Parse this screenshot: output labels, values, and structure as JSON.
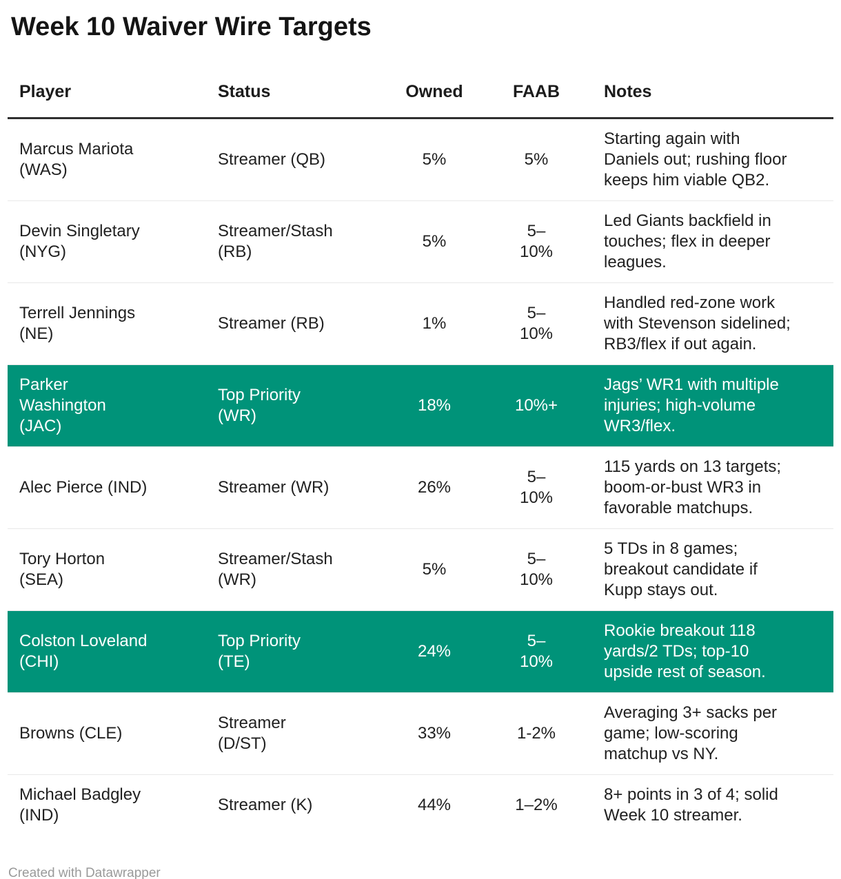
{
  "chart_data": {
    "type": "table",
    "title": "Week 10 Waiver Wire Targets",
    "columns": [
      "Player",
      "Status",
      "Owned",
      "FAAB",
      "Notes"
    ],
    "rows": [
      {
        "player": "Marcus Mariota (WAS)",
        "status": "Streamer (QB)",
        "owned": "5%",
        "faab": "5%",
        "notes": "Starting again with Daniels out; rushing floor keeps him viable QB2.",
        "highlight": false
      },
      {
        "player": "Devin Singletary (NYG)",
        "status": "Streamer/Stash (RB)",
        "owned": "5%",
        "faab": "5–10%",
        "notes": "Led Giants backfield in touches; flex in deeper leagues.",
        "highlight": false
      },
      {
        "player": "Terrell Jennings (NE)",
        "status": "Streamer (RB)",
        "owned": "1%",
        "faab": "5–10%",
        "notes": "Handled red-zone work with Stevenson sidelined; RB3/flex if out again.",
        "highlight": false
      },
      {
        "player": "Parker Washington (JAC)",
        "status": "Top Priority (WR)",
        "owned": "18%",
        "faab": "10%+",
        "notes": "Jags’ WR1 with multiple injuries; high-volume WR3/flex.",
        "highlight": true
      },
      {
        "player": "Alec Pierce (IND)",
        "status": "Streamer (WR)",
        "owned": "26%",
        "faab": "5–10%",
        "notes": "115 yards on 13 targets; boom-or-bust WR3 in favorable matchups.",
        "highlight": false
      },
      {
        "player": "Tory Horton (SEA)",
        "status": "Streamer/Stash (WR)",
        "owned": "5%",
        "faab": "5–10%",
        "notes": "5 TDs in 8 games; breakout candidate if Kupp stays out.",
        "highlight": false
      },
      {
        "player": "Colston Loveland (CHI)",
        "status": "Top Priority (TE)",
        "owned": "24%",
        "faab": "5–10%",
        "notes": "Rookie breakout 118 yards/2 TDs; top-10 upside rest of season.",
        "highlight": true
      },
      {
        "player": "Browns (CLE)",
        "status": "Streamer (D/ST)",
        "owned": "33%",
        "faab": "1-2%",
        "notes": "Averaging 3+ sacks per game; low-scoring matchup vs NY.",
        "highlight": false
      },
      {
        "player": "Michael Badgley (IND)",
        "status": "Streamer (K)",
        "owned": "44%",
        "faab": "1–2%",
        "notes": "8+ points in 3 of 4; solid Week 10 streamer.",
        "highlight": false
      }
    ],
    "layout_hints": {
      "highlighted_rows": [
        3,
        6
      ],
      "highlight_bg": "#009379",
      "highlight_text": "#ffffff",
      "grid": "horizontal-rules-only"
    }
  },
  "footer": {
    "attribution": "Created with Datawrapper"
  }
}
